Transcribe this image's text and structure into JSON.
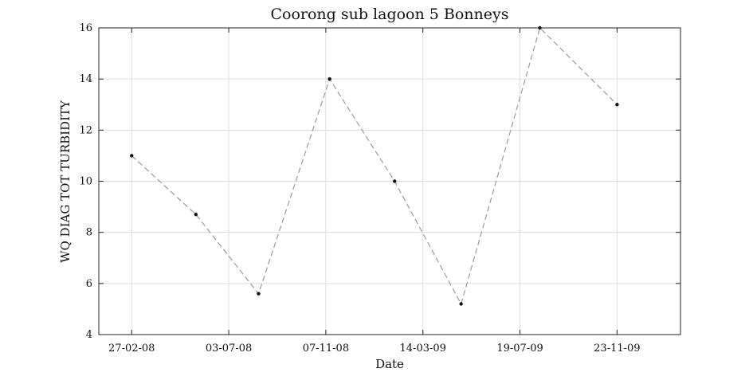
{
  "chart_data": {
    "type": "line",
    "title": "Coorong sub lagoon 5 Bonneys",
    "xlabel": "Date",
    "ylabel": "WQ DIAG TOT TURBIDITY",
    "xlim": [
      "2008-01-15",
      "2010-02-14"
    ],
    "ylim": [
      4,
      16
    ],
    "x_ticks": [
      {
        "date": "2008-02-27",
        "label": "27-02-08"
      },
      {
        "date": "2008-07-03",
        "label": "03-07-08"
      },
      {
        "date": "2008-11-07",
        "label": "07-11-08"
      },
      {
        "date": "2009-03-14",
        "label": "14-03-09"
      },
      {
        "date": "2009-07-19",
        "label": "19-07-09"
      },
      {
        "date": "2009-11-23",
        "label": "23-11-09"
      }
    ],
    "y_ticks": [
      4,
      6,
      8,
      10,
      12,
      14,
      16
    ],
    "grid": true,
    "series": [
      {
        "x": [
          "2008-02-27",
          "2008-05-21",
          "2008-08-11",
          "2008-11-12",
          "2009-02-05",
          "2009-05-03",
          "2009-08-14",
          "2009-11-23"
        ],
        "y": [
          11,
          8.7,
          5.6,
          14,
          10,
          5.2,
          16,
          13
        ]
      }
    ]
  }
}
